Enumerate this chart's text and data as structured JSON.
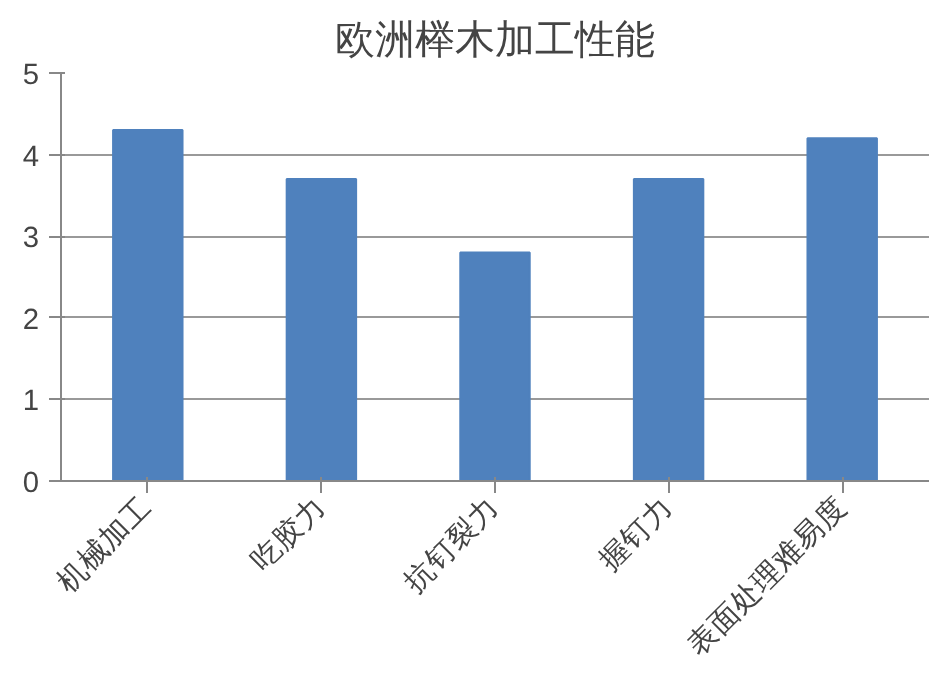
{
  "chart_data": {
    "type": "bar",
    "title": "欧洲榉木加工性能",
    "categories": [
      "机械加工",
      "吃胶力",
      "抗钉裂力",
      "握钉力",
      "表面处理难易度"
    ],
    "values": [
      4.3,
      3.7,
      2.8,
      3.7,
      4.2
    ],
    "color": "#4f81bd",
    "ylim": [
      0,
      5
    ],
    "yticks": [
      0,
      1,
      2,
      3,
      4,
      5
    ],
    "grid": "y"
  }
}
